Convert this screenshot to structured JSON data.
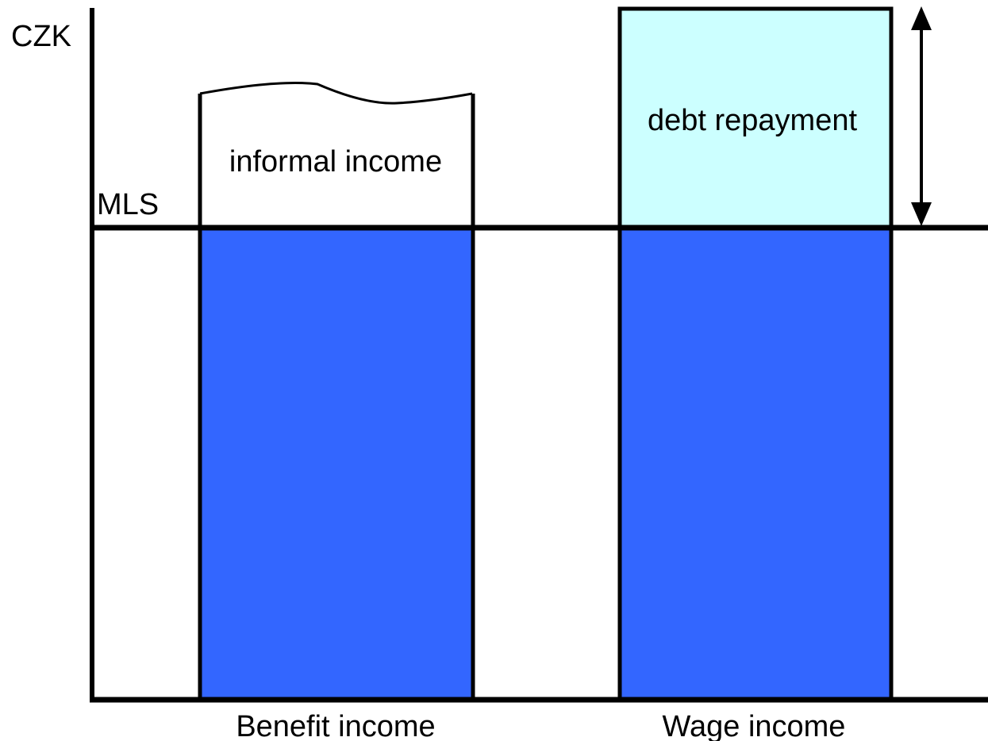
{
  "axis_label": "CZK",
  "line_label": "MLS",
  "bars": [
    {
      "label": "Benefit income",
      "top_label": "informal income"
    },
    {
      "label": "Wage income",
      "top_label": "debt repayment"
    }
  ]
}
